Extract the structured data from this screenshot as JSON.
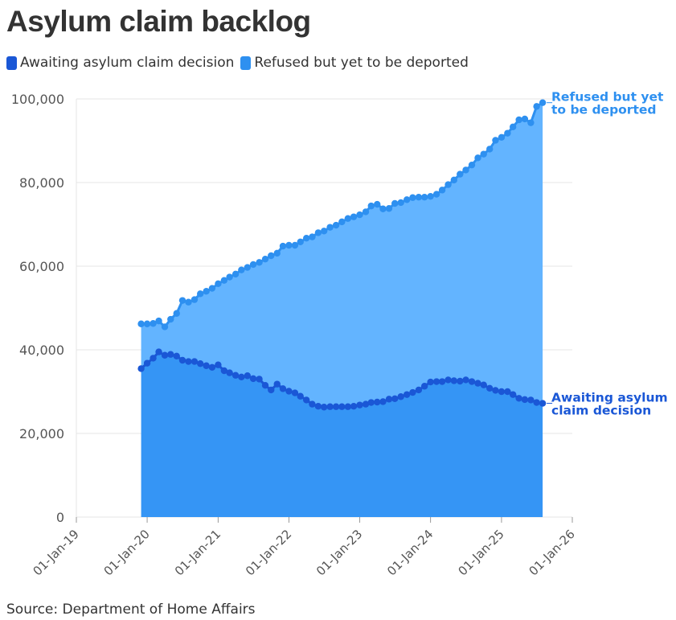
{
  "title": "Asylum claim backlog",
  "source": "Source: Department of Home Affairs",
  "legend": [
    {
      "label": "Awaiting asylum claim decision",
      "color": "#1a57d6"
    },
    {
      "label": "Refused but yet to be deported",
      "color": "#2e90f0"
    }
  ],
  "colors": {
    "awaiting_line": "#1a57d6",
    "awaiting_fill": "#3595f5",
    "refused_line": "#2e90f0",
    "refused_fill": "#63b4ff",
    "grid": "#e6e6e6",
    "axis_text": "#555555"
  },
  "chart_data": {
    "type": "area",
    "stacked": true,
    "xlabel": "",
    "ylabel": "",
    "ylim": [
      0,
      100000
    ],
    "y_ticks": [
      0,
      20000,
      40000,
      60000,
      80000,
      100000
    ],
    "y_tick_labels": [
      "0",
      "20,000",
      "40,000",
      "60,000",
      "80,000",
      "100,000"
    ],
    "x_ticks": [
      "2019-01-01",
      "2020-01-01",
      "2021-01-01",
      "2022-01-01",
      "2023-01-01",
      "2024-01-01",
      "2025-01-01",
      "2026-01-01"
    ],
    "x_tick_labels": [
      "01-Jan-19",
      "01-Jan-20",
      "01-Jan-21",
      "01-Jan-22",
      "01-Jan-23",
      "01-Jan-24",
      "01-Jan-25",
      "01-Jan-26"
    ],
    "x": [
      "2019-12-01",
      "2020-01-01",
      "2020-02-01",
      "2020-03-01",
      "2020-04-01",
      "2020-05-01",
      "2020-06-01",
      "2020-07-01",
      "2020-08-01",
      "2020-09-01",
      "2020-10-01",
      "2020-11-01",
      "2020-12-01",
      "2021-01-01",
      "2021-02-01",
      "2021-03-01",
      "2021-04-01",
      "2021-05-01",
      "2021-06-01",
      "2021-07-01",
      "2021-08-01",
      "2021-09-01",
      "2021-10-01",
      "2021-11-01",
      "2021-12-01",
      "2022-01-01",
      "2022-02-01",
      "2022-03-01",
      "2022-04-01",
      "2022-05-01",
      "2022-06-01",
      "2022-07-01",
      "2022-08-01",
      "2022-09-01",
      "2022-10-01",
      "2022-11-01",
      "2022-12-01",
      "2023-01-01",
      "2023-02-01",
      "2023-03-01",
      "2023-04-01",
      "2023-05-01",
      "2023-06-01",
      "2023-07-01",
      "2023-08-01",
      "2023-09-01",
      "2023-10-01",
      "2023-11-01",
      "2023-12-01",
      "2024-01-01",
      "2024-02-01",
      "2024-03-01",
      "2024-04-01",
      "2024-05-01",
      "2024-06-01",
      "2024-07-01",
      "2024-08-01",
      "2024-09-01",
      "2024-10-01",
      "2024-11-01",
      "2024-12-01",
      "2025-01-01",
      "2025-02-01",
      "2025-03-01",
      "2025-04-01",
      "2025-05-01",
      "2025-06-01",
      "2025-07-01",
      "2025-08-01"
    ],
    "series": [
      {
        "name": "Awaiting asylum claim decision",
        "end_label": [
          "Awaiting asylum",
          "claim decision"
        ],
        "values": [
          35500,
          36800,
          38000,
          39500,
          38700,
          38900,
          38500,
          37500,
          37200,
          37200,
          36700,
          36200,
          35800,
          36400,
          35000,
          34500,
          33900,
          33500,
          33800,
          33100,
          33000,
          31500,
          30400,
          31800,
          30700,
          30100,
          29700,
          28900,
          28000,
          27000,
          26500,
          26300,
          26400,
          26400,
          26400,
          26400,
          26500,
          26800,
          27000,
          27400,
          27500,
          27600,
          28200,
          28300,
          28800,
          29300,
          29800,
          30400,
          31300,
          32300,
          32400,
          32400,
          32800,
          32600,
          32500,
          32800,
          32400,
          32000,
          31600,
          30800,
          30300,
          30000,
          30000,
          29300,
          28400,
          28100,
          28000,
          27400,
          27200
        ]
      },
      {
        "name": "Refused but yet to be deported",
        "end_label": [
          "Refused but yet",
          "to be deported"
        ],
        "values": [
          10700,
          9400,
          8300,
          7400,
          6800,
          8400,
          10200,
          14300,
          14200,
          14800,
          16700,
          17800,
          18900,
          19400,
          21600,
          22900,
          24200,
          25600,
          25900,
          27300,
          27900,
          30200,
          32100,
          31300,
          34100,
          34900,
          35300,
          36900,
          38700,
          40000,
          41500,
          42100,
          42900,
          43400,
          44200,
          45000,
          45300,
          45500,
          46000,
          47000,
          47300,
          46100,
          45600,
          46700,
          46400,
          46600,
          46600,
          46100,
          45200,
          44400,
          44800,
          45800,
          46700,
          48000,
          49500,
          50200,
          51800,
          53900,
          55200,
          57200,
          59800,
          60800,
          61800,
          64000,
          66600,
          67100,
          66300,
          70800,
          71900
        ]
      }
    ]
  }
}
